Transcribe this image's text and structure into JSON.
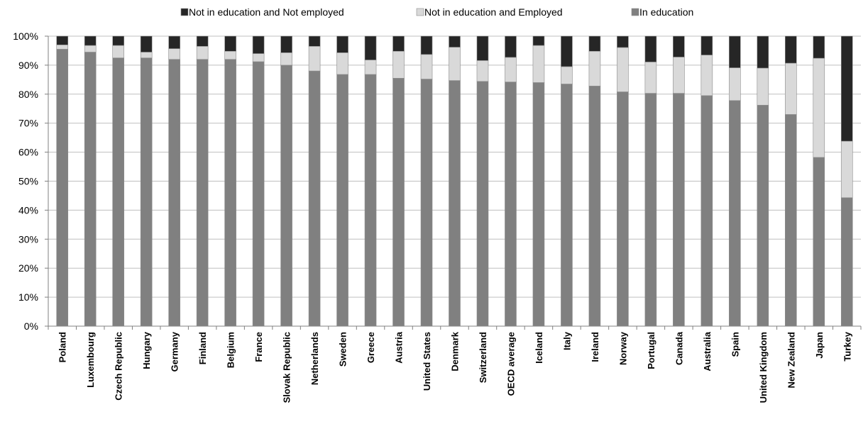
{
  "chart_data": {
    "type": "stacked-bar",
    "categories": [
      "Poland",
      "Luxembourg",
      "Czech Republic",
      "Hungary",
      "Germany",
      "Finland",
      "Belgium",
      "France",
      "Slovak Republic",
      "Netherlands",
      "Sweden",
      "Greece",
      "Austria",
      "United States",
      "Denmark",
      "Switzerland",
      "OECD average",
      "Iceland",
      "Italy",
      "Ireland",
      "Norway",
      "Portugal",
      "Canada",
      "Australia",
      "Spain",
      "United Kingdom",
      "New Zealand",
      "Japan",
      "Turkey"
    ],
    "series": [
      {
        "name": "Not in education and Not employed",
        "color": "#262626",
        "values": [
          3,
          3.2,
          3.2,
          5.5,
          4.3,
          3.5,
          5.2,
          6,
          5.7,
          3.5,
          5.7,
          8.2,
          5.2,
          6.3,
          3.8,
          8.4,
          7.3,
          3.2,
          10.5,
          5.2,
          3.9,
          8.9,
          7.2,
          6.5,
          10.9,
          11,
          9.3,
          7.6,
          36.2
        ]
      },
      {
        "name": "Not in education and Employed",
        "color": "#d9d9d9",
        "values": [
          1.5,
          2.3,
          4.3,
          2,
          3.7,
          4.5,
          2.8,
          2.8,
          4.3,
          8.5,
          7.5,
          5,
          9.3,
          8.5,
          11.5,
          7.2,
          8.5,
          12.8,
          6,
          12,
          15.3,
          10.8,
          12.5,
          14,
          11.3,
          12.8,
          17.7,
          34.2,
          19.5
        ]
      },
      {
        "name": "In education",
        "color": "#808080",
        "values": [
          95.5,
          94.5,
          92.5,
          92.5,
          92,
          92,
          92,
          91.2,
          90,
          88,
          86.8,
          86.8,
          85.5,
          85.2,
          84.7,
          84.4,
          84.2,
          84,
          83.5,
          82.8,
          80.8,
          80.3,
          80.3,
          79.5,
          77.8,
          76.2,
          73,
          58.2,
          44.3
        ]
      }
    ],
    "ylim": [
      0,
      100
    ],
    "yticks": [
      {
        "value": 0,
        "label": "0%"
      },
      {
        "value": 10,
        "label": "10%"
      },
      {
        "value": 20,
        "label": "20%"
      },
      {
        "value": 30,
        "label": "30%"
      },
      {
        "value": 40,
        "label": "40%"
      },
      {
        "value": 50,
        "label": "50%"
      },
      {
        "value": 60,
        "label": "60%"
      },
      {
        "value": 70,
        "label": "70%"
      },
      {
        "value": 80,
        "label": "80%"
      },
      {
        "value": 90,
        "label": "90%"
      },
      {
        "value": 100,
        "label": "100%"
      }
    ],
    "grid": true
  }
}
